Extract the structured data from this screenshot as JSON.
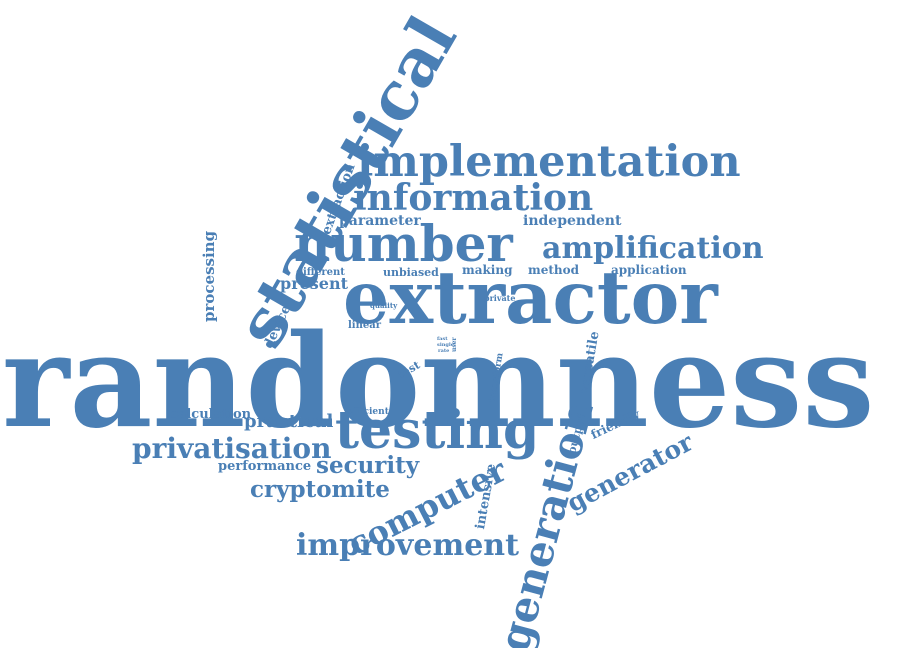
{
  "color": "#4a7fb5",
  "words": [
    {
      "key": "randomness",
      "text": "randomness"
    },
    {
      "key": "extractor",
      "text": "extractor"
    },
    {
      "key": "statistical",
      "text": "statistical"
    },
    {
      "key": "number",
      "text": "number"
    },
    {
      "key": "implementation",
      "text": "implementation"
    },
    {
      "key": "information",
      "text": "information"
    },
    {
      "key": "amplification",
      "text": "amplification"
    },
    {
      "key": "testing",
      "text": "testing"
    },
    {
      "key": "generation",
      "text": "generation"
    },
    {
      "key": "improvement",
      "text": "improvement"
    },
    {
      "key": "computer",
      "text": "computer"
    },
    {
      "key": "privatisation",
      "text": "privatisation"
    },
    {
      "key": "generator",
      "text": "generator"
    },
    {
      "key": "cryptomite",
      "text": "cryptomite"
    },
    {
      "key": "security",
      "text": "security"
    },
    {
      "key": "practical",
      "text": "practical"
    },
    {
      "key": "performance",
      "text": "performance"
    },
    {
      "key": "calculation",
      "text": "calculation"
    },
    {
      "key": "processing",
      "text": "processing"
    },
    {
      "key": "parameter",
      "text": "parameter"
    },
    {
      "key": "independent",
      "text": "independent"
    },
    {
      "key": "extraction",
      "text": "extraction"
    },
    {
      "key": "present",
      "text": "present"
    },
    {
      "key": "different",
      "text": "different"
    },
    {
      "key": "unbiased",
      "text": "unbiased"
    },
    {
      "key": "making",
      "text": "making"
    },
    {
      "key": "method",
      "text": "method"
    },
    {
      "key": "application",
      "text": "application"
    },
    {
      "key": "device",
      "text": "device"
    },
    {
      "key": "quality",
      "text": "quality"
    },
    {
      "key": "private",
      "text": "private"
    },
    {
      "key": "linear",
      "text": "linear"
    },
    {
      "key": "test",
      "text": "test"
    },
    {
      "key": "transform",
      "text": "transform"
    },
    {
      "key": "versatile",
      "text": "versatile"
    },
    {
      "key": "efficient",
      "text": "efficient"
    },
    {
      "key": "output",
      "text": "output"
    },
    {
      "key": "friendly",
      "text": "friendly"
    },
    {
      "key": "intensive",
      "text": "intensive"
    },
    {
      "key": "fast",
      "text": "fast"
    },
    {
      "key": "user",
      "text": "user"
    },
    {
      "key": "rate",
      "text": "rate"
    },
    {
      "key": "single",
      "text": "single"
    }
  ]
}
